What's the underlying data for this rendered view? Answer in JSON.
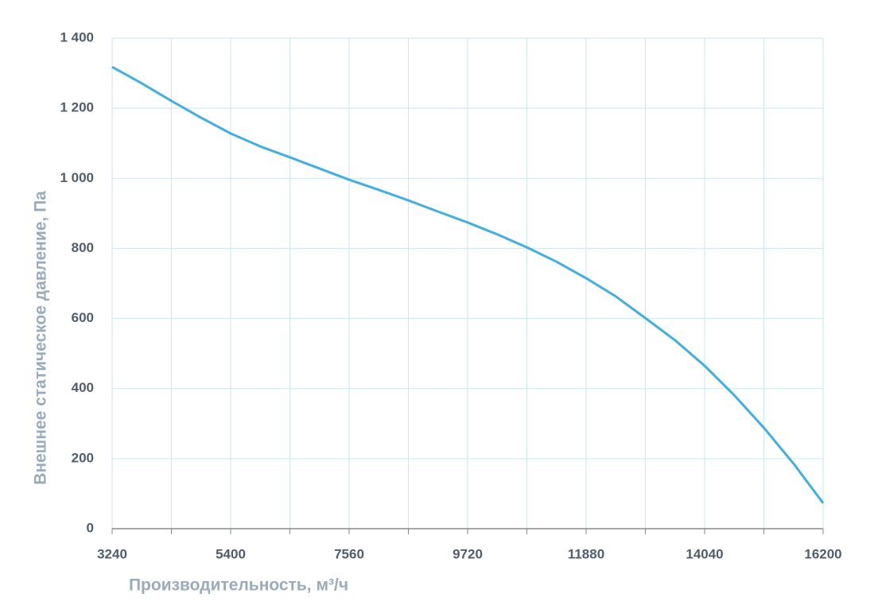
{
  "chart_data": {
    "type": "line",
    "x_label": "Производительность, м³/ч",
    "y_label": "Внешнее  статическое  давление, Па",
    "x": [
      3240,
      3780,
      4320,
      4860,
      5400,
      5940,
      6480,
      7020,
      7560,
      8100,
      8640,
      9180,
      9720,
      10260,
      10800,
      11340,
      11880,
      12420,
      12960,
      13500,
      14040,
      14580,
      15120,
      15660,
      16200
    ],
    "series": [
      {
        "color": "#41b0e0",
        "values": [
          1318,
          1271,
          1221,
          1173,
          1128,
          1091,
          1060,
          1028,
          996,
          967,
          937,
          905,
          874,
          840,
          803,
          762,
          715,
          663,
          601,
          538,
          465,
          381,
          288,
          186,
          73
        ]
      }
    ],
    "xlim": [
      3240,
      16200
    ],
    "xticks": [
      3240,
      5400,
      7560,
      9720,
      11880,
      14040,
      16200
    ],
    "x_minor_ticks": [
      4320,
      6480,
      8640,
      10800,
      12960,
      15120
    ],
    "ylim": [
      0,
      1400
    ],
    "yticks": [
      0,
      200,
      400,
      600,
      800,
      {
        "value": 1000,
        "label": "1 000"
      },
      {
        "value": 1200,
        "label": "1 200"
      },
      {
        "value": 1400,
        "label": "1 400"
      }
    ],
    "grid": true
  }
}
